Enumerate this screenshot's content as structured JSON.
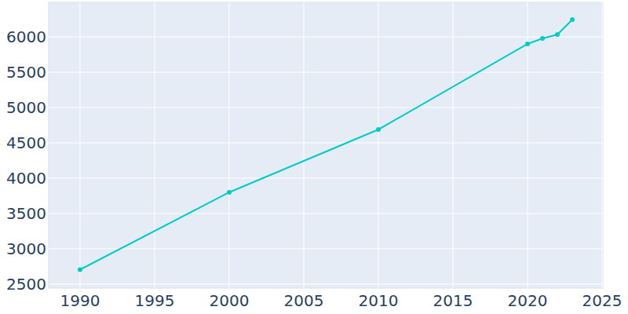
{
  "chart_data": {
    "type": "line",
    "x": [
      1990,
      2000,
      2010,
      2020,
      2021,
      2022,
      2023
    ],
    "values": [
      2705,
      3800,
      4689,
      5900,
      5978,
      6033,
      6244
    ],
    "color": "#00ccc5",
    "marker": "circle",
    "xlim": [
      1987.9,
      2025.05
    ],
    "xticks": [
      1990,
      1995,
      2000,
      2005,
      2010,
      2015,
      2020,
      2025
    ],
    "ylim": [
      2444,
      6489
    ],
    "yticks": [
      2500,
      3000,
      3500,
      4000,
      4500,
      5000,
      5500,
      6000
    ],
    "grid": true
  }
}
